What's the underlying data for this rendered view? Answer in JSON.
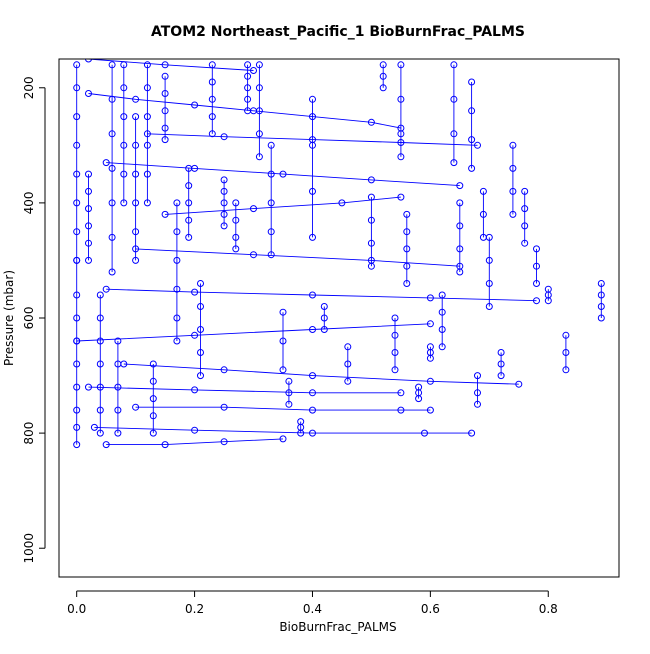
{
  "chart_data": {
    "type": "scatter",
    "title": "ATOM2 Northeast_Pacific_1 BioBurnFrac_PALMS",
    "xlabel": "BioBurnFrac_PALMS",
    "ylabel": "Pressure (mbar)",
    "xlim": [
      -0.03,
      0.92
    ],
    "ylim": [
      1050,
      150
    ],
    "y_reversed": true,
    "x_ticks": [
      "0.0",
      "0.2",
      "0.4",
      "0.6",
      "0.8"
    ],
    "y_ticks": [
      "200",
      "400",
      "600",
      "800",
      "1000"
    ],
    "grid": false,
    "legend": "none",
    "color": "#0000ff",
    "marker": "open-circle",
    "connected": true,
    "series": [
      {
        "x": [
          0.0,
          0.0,
          0.0,
          0.0,
          0.0,
          0.0,
          0.0,
          0.0,
          0.0
        ],
        "y": [
          500,
          560,
          600,
          640,
          680,
          720,
          760,
          790,
          820
        ]
      },
      {
        "x": [
          0.0,
          0.0,
          0.0,
          0.0,
          0.0,
          0.0,
          0.0,
          0.0
        ],
        "y": [
          160,
          200,
          250,
          300,
          350,
          400,
          450,
          500
        ]
      },
      {
        "x": [
          0.02,
          0.02,
          0.02,
          0.02,
          0.02,
          0.02
        ],
        "y": [
          350,
          380,
          410,
          440,
          470,
          500
        ]
      },
      {
        "x": [
          0.04,
          0.04,
          0.04,
          0.04,
          0.04,
          0.04,
          0.04
        ],
        "y": [
          560,
          600,
          640,
          680,
          720,
          760,
          800
        ]
      },
      {
        "x": [
          0.06,
          0.06,
          0.06,
          0.06,
          0.06,
          0.06,
          0.06
        ],
        "y": [
          160,
          220,
          280,
          340,
          400,
          460,
          520
        ]
      },
      {
        "x": [
          0.07,
          0.07,
          0.07,
          0.07,
          0.07
        ],
        "y": [
          640,
          680,
          720,
          760,
          800
        ]
      },
      {
        "x": [
          0.08,
          0.08,
          0.08,
          0.08,
          0.08,
          0.08
        ],
        "y": [
          160,
          200,
          250,
          300,
          350,
          400
        ]
      },
      {
        "x": [
          0.1,
          0.1,
          0.1,
          0.1,
          0.1,
          0.1
        ],
        "y": [
          250,
          300,
          350,
          400,
          450,
          500
        ]
      },
      {
        "x": [
          0.12,
          0.12,
          0.12,
          0.12,
          0.12,
          0.12
        ],
        "y": [
          160,
          200,
          250,
          300,
          350,
          400
        ]
      },
      {
        "x": [
          0.13,
          0.13,
          0.13,
          0.13,
          0.13
        ],
        "y": [
          680,
          710,
          740,
          770,
          800
        ]
      },
      {
        "x": [
          0.15,
          0.15,
          0.15,
          0.15,
          0.15
        ],
        "y": [
          180,
          210,
          240,
          270,
          290
        ]
      },
      {
        "x": [
          0.17,
          0.17,
          0.17,
          0.17,
          0.17,
          0.17
        ],
        "y": [
          400,
          450,
          500,
          550,
          600,
          640
        ]
      },
      {
        "x": [
          0.19,
          0.19,
          0.19,
          0.19,
          0.19
        ],
        "y": [
          340,
          370,
          400,
          430,
          460
        ]
      },
      {
        "x": [
          0.21,
          0.21,
          0.21,
          0.21,
          0.21
        ],
        "y": [
          540,
          580,
          620,
          660,
          700
        ]
      },
      {
        "x": [
          0.23,
          0.23,
          0.23,
          0.23,
          0.23
        ],
        "y": [
          160,
          190,
          220,
          250,
          280
        ]
      },
      {
        "x": [
          0.25,
          0.25,
          0.25,
          0.25,
          0.25
        ],
        "y": [
          360,
          380,
          400,
          420,
          440
        ]
      },
      {
        "x": [
          0.27,
          0.27,
          0.27,
          0.27
        ],
        "y": [
          400,
          430,
          460,
          480
        ]
      },
      {
        "x": [
          0.29,
          0.29,
          0.29,
          0.29,
          0.29
        ],
        "y": [
          160,
          180,
          200,
          220,
          240
        ]
      },
      {
        "x": [
          0.31,
          0.31,
          0.31,
          0.31,
          0.31
        ],
        "y": [
          160,
          200,
          240,
          280,
          320
        ]
      },
      {
        "x": [
          0.33,
          0.33,
          0.33,
          0.33,
          0.33
        ],
        "y": [
          300,
          350,
          400,
          450,
          490
        ]
      },
      {
        "x": [
          0.35,
          0.35,
          0.35
        ],
        "y": [
          590,
          640,
          690
        ]
      },
      {
        "x": [
          0.36,
          0.36,
          0.36
        ],
        "y": [
          710,
          730,
          750
        ]
      },
      {
        "x": [
          0.38,
          0.38,
          0.38
        ],
        "y": [
          780,
          790,
          800
        ]
      },
      {
        "x": [
          0.4,
          0.4,
          0.4,
          0.4
        ],
        "y": [
          220,
          300,
          380,
          460
        ]
      },
      {
        "x": [
          0.42,
          0.42,
          0.42
        ],
        "y": [
          580,
          600,
          620
        ]
      },
      {
        "x": [
          0.46,
          0.46,
          0.46
        ],
        "y": [
          650,
          680,
          710
        ]
      },
      {
        "x": [
          0.5,
          0.5,
          0.5,
          0.5
        ],
        "y": [
          390,
          430,
          470,
          510
        ]
      },
      {
        "x": [
          0.52,
          0.52,
          0.52
        ],
        "y": [
          160,
          180,
          200
        ]
      },
      {
        "x": [
          0.54,
          0.54,
          0.54,
          0.54
        ],
        "y": [
          600,
          630,
          660,
          690
        ]
      },
      {
        "x": [
          0.55,
          0.55,
          0.55,
          0.55
        ],
        "y": [
          160,
          220,
          280,
          320
        ]
      },
      {
        "x": [
          0.56,
          0.56,
          0.56,
          0.56,
          0.56
        ],
        "y": [
          420,
          450,
          480,
          510,
          540
        ]
      },
      {
        "x": [
          0.58,
          0.58,
          0.58
        ],
        "y": [
          720,
          730,
          740
        ]
      },
      {
        "x": [
          0.6,
          0.6,
          0.6
        ],
        "y": [
          650,
          660,
          670
        ]
      },
      {
        "x": [
          0.62,
          0.62,
          0.62,
          0.62
        ],
        "y": [
          560,
          590,
          620,
          650
        ]
      },
      {
        "x": [
          0.64,
          0.64,
          0.64,
          0.64
        ],
        "y": [
          160,
          220,
          280,
          330
        ]
      },
      {
        "x": [
          0.65,
          0.65,
          0.65,
          0.65
        ],
        "y": [
          400,
          440,
          480,
          520
        ]
      },
      {
        "x": [
          0.67,
          0.67,
          0.67,
          0.67
        ],
        "y": [
          190,
          240,
          290,
          340
        ]
      },
      {
        "x": [
          0.68,
          0.68,
          0.68
        ],
        "y": [
          700,
          730,
          750
        ]
      },
      {
        "x": [
          0.69,
          0.69,
          0.69
        ],
        "y": [
          380,
          420,
          460
        ]
      },
      {
        "x": [
          0.7,
          0.7,
          0.7,
          0.7
        ],
        "y": [
          460,
          500,
          540,
          580
        ]
      },
      {
        "x": [
          0.72,
          0.72,
          0.72
        ],
        "y": [
          660,
          680,
          700
        ]
      },
      {
        "x": [
          0.74,
          0.74,
          0.74,
          0.74
        ],
        "y": [
          300,
          340,
          380,
          420
        ]
      },
      {
        "x": [
          0.76,
          0.76,
          0.76,
          0.76
        ],
        "y": [
          380,
          410,
          440,
          470
        ]
      },
      {
        "x": [
          0.78,
          0.78,
          0.78
        ],
        "y": [
          480,
          510,
          540
        ]
      },
      {
        "x": [
          0.8,
          0.8,
          0.8
        ],
        "y": [
          550,
          560,
          570
        ]
      },
      {
        "x": [
          0.83,
          0.83,
          0.83
        ],
        "y": [
          630,
          660,
          690
        ]
      },
      {
        "x": [
          0.89,
          0.89,
          0.89,
          0.89
        ],
        "y": [
          540,
          560,
          580,
          600
        ]
      },
      {
        "x": [
          0.02,
          0.1,
          0.2,
          0.3,
          0.4,
          0.5,
          0.55
        ],
        "y": [
          210,
          220,
          230,
          240,
          250,
          260,
          270
        ]
      },
      {
        "x": [
          0.05,
          0.2,
          0.35,
          0.5,
          0.65
        ],
        "y": [
          330,
          340,
          350,
          360,
          370
        ]
      },
      {
        "x": [
          0.05,
          0.2,
          0.4,
          0.6,
          0.78
        ],
        "y": [
          550,
          555,
          560,
          565,
          570
        ]
      },
      {
        "x": [
          0.02,
          0.2,
          0.4,
          0.55
        ],
        "y": [
          720,
          725,
          730,
          730
        ]
      },
      {
        "x": [
          0.03,
          0.2,
          0.4,
          0.59,
          0.67
        ],
        "y": [
          790,
          795,
          800,
          800,
          800
        ]
      },
      {
        "x": [
          0.0,
          0.2,
          0.4,
          0.6
        ],
        "y": [
          640,
          630,
          620,
          610
        ]
      },
      {
        "x": [
          0.08,
          0.25,
          0.4,
          0.6,
          0.75
        ],
        "y": [
          680,
          690,
          700,
          710,
          715
        ]
      },
      {
        "x": [
          0.1,
          0.3,
          0.5,
          0.65
        ],
        "y": [
          480,
          490,
          500,
          510
        ]
      },
      {
        "x": [
          0.05,
          0.15,
          0.25,
          0.35
        ],
        "y": [
          820,
          820,
          815,
          810
        ]
      },
      {
        "x": [
          0.1,
          0.25,
          0.4,
          0.55,
          0.6
        ],
        "y": [
          755,
          755,
          760,
          760,
          760
        ]
      },
      {
        "x": [
          0.15,
          0.3,
          0.45,
          0.55
        ],
        "y": [
          420,
          410,
          400,
          390
        ]
      },
      {
        "x": [
          0.02,
          0.15,
          0.3
        ],
        "y": [
          150,
          160,
          170
        ]
      },
      {
        "x": [
          0.12,
          0.25,
          0.4,
          0.55,
          0.68
        ],
        "y": [
          280,
          285,
          290,
          295,
          300
        ]
      }
    ]
  }
}
